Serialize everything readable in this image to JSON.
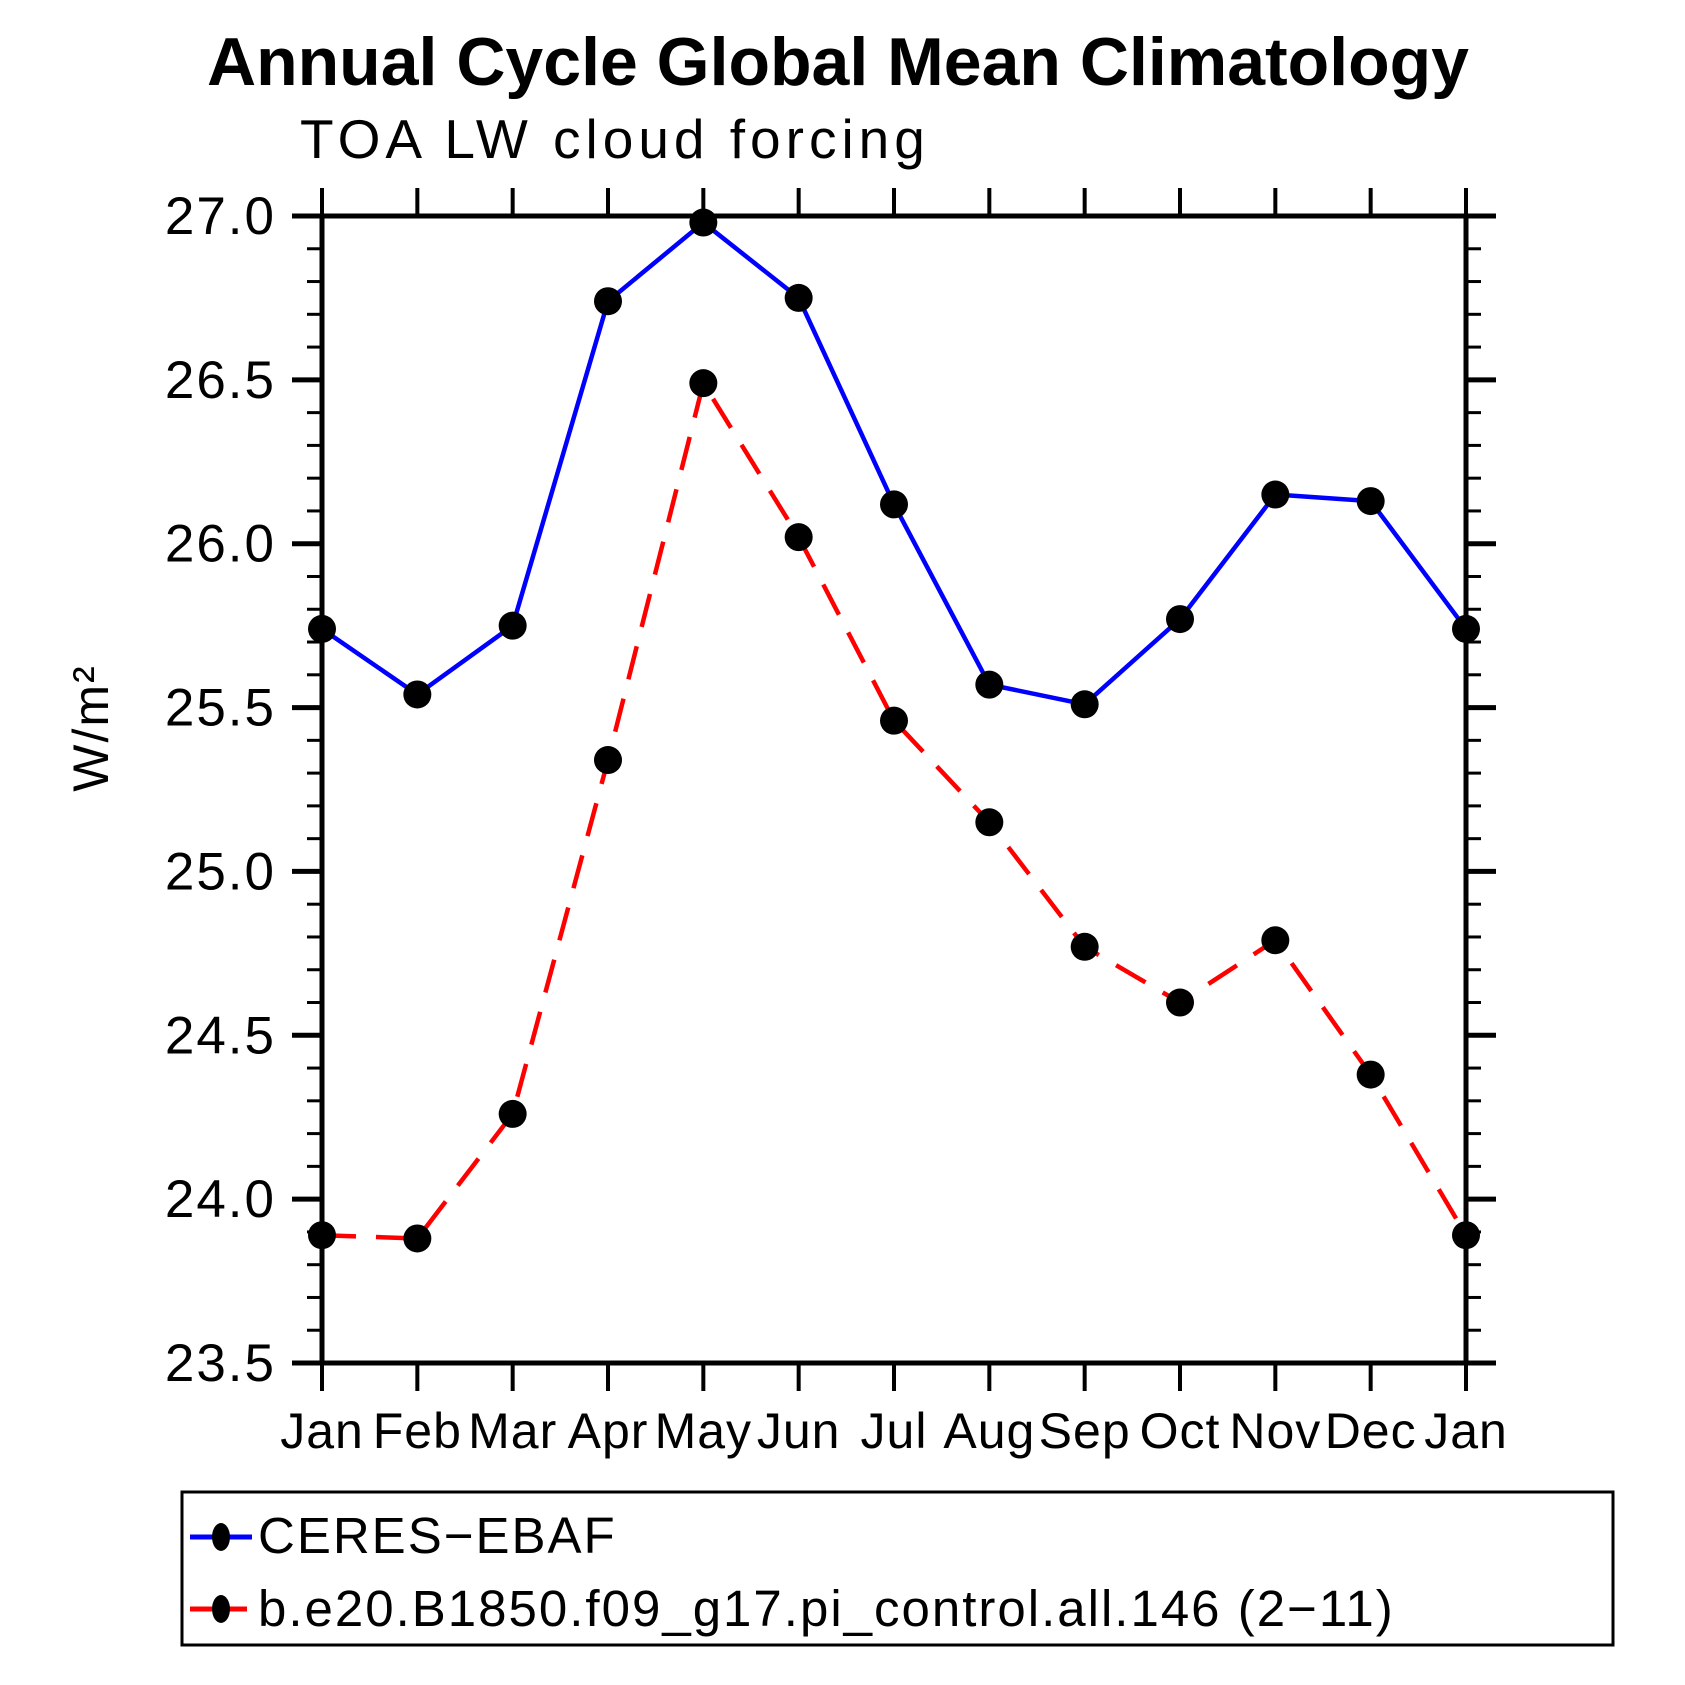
{
  "title": "Annual Cycle Global Mean Climatology",
  "subtitle": "TOA LW cloud forcing",
  "ylabel": "W/m²",
  "legend": {
    "entries": [
      {
        "label": "CERES−EBAF",
        "color": "#0000ff",
        "style": "solid"
      },
      {
        "label": "b.e20.B1850.f09_g17.pi_control.all.146 (2−11)",
        "color": "#ff0000",
        "style": "dashed"
      }
    ]
  },
  "chart_data": {
    "type": "line",
    "categories": [
      "Jan",
      "Feb",
      "Mar",
      "Apr",
      "May",
      "Jun",
      "Jul",
      "Aug",
      "Sep",
      "Oct",
      "Nov",
      "Dec",
      "Jan"
    ],
    "series": [
      {
        "name": "CERES−EBAF",
        "color": "#0000ff",
        "style": "solid",
        "values": [
          25.74,
          25.54,
          25.75,
          26.74,
          26.98,
          26.75,
          26.12,
          25.57,
          25.51,
          25.77,
          26.15,
          26.13,
          25.74
        ]
      },
      {
        "name": "b.e20.B1850.f09_g17.pi_control.all.146 (2−11)",
        "color": "#ff0000",
        "style": "dashed",
        "values": [
          23.89,
          23.88,
          24.26,
          25.34,
          26.49,
          26.02,
          25.46,
          25.15,
          24.77,
          24.6,
          24.79,
          24.38,
          23.89
        ]
      }
    ],
    "title": "Annual Cycle Global Mean Climatology",
    "subtitle": "TOA LW cloud forcing",
    "xlabel": "",
    "ylabel": "W/m²",
    "ylim": [
      23.5,
      27.0
    ],
    "ytick_major": 0.5,
    "ytick_minor": 0.1,
    "ytick_labels": [
      "27.0",
      "26.5",
      "26.0",
      "25.5",
      "25.0",
      "24.5",
      "24.0",
      "23.5"
    ],
    "grid": false,
    "marker": "filled-circle",
    "marker_color": "#000000",
    "legend_position": "bottom"
  }
}
